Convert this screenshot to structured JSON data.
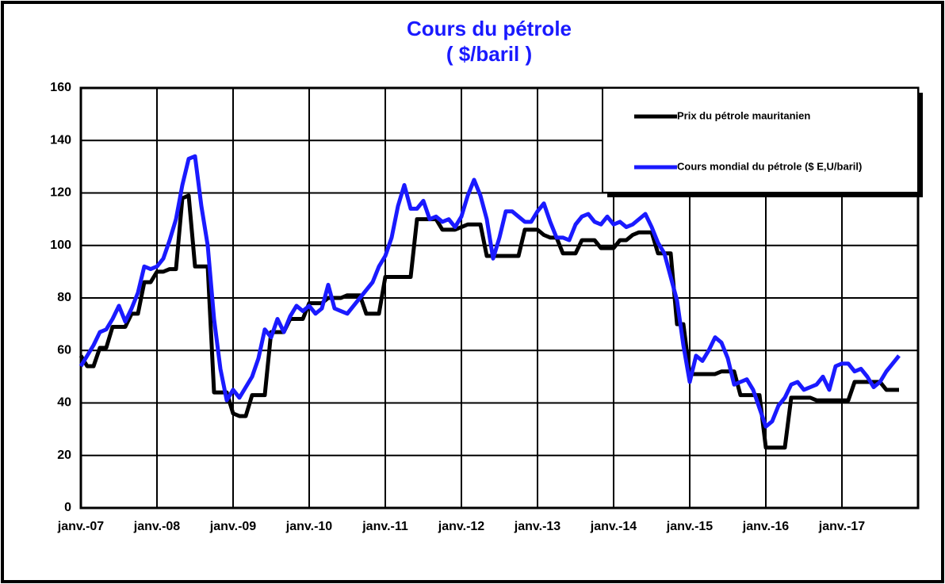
{
  "chart_data": {
    "type": "line",
    "title": "Cours du pétrole",
    "subtitle": "( $/baril )",
    "categories": [
      "janv.-07",
      null,
      null,
      null,
      null,
      null,
      null,
      null,
      null,
      null,
      null,
      null,
      "janv.-08",
      null,
      null,
      null,
      null,
      null,
      null,
      null,
      null,
      null,
      null,
      null,
      "janv.-09",
      null,
      null,
      null,
      null,
      null,
      null,
      null,
      null,
      null,
      null,
      null,
      "janv.-10",
      null,
      null,
      null,
      null,
      null,
      null,
      null,
      null,
      null,
      null,
      null,
      "janv.-11",
      null,
      null,
      null,
      null,
      null,
      null,
      null,
      null,
      null,
      null,
      null,
      "janv.-12",
      null,
      null,
      null,
      null,
      null,
      null,
      null,
      null,
      null,
      null,
      null,
      "janv.-13",
      null,
      null,
      null,
      null,
      null,
      null,
      null,
      null,
      null,
      null,
      null,
      "janv.-14",
      null,
      null,
      null,
      null,
      null,
      null,
      null,
      null,
      null,
      null,
      null,
      "janv.-15",
      null,
      null,
      null,
      null,
      null,
      null,
      null,
      null,
      null,
      null,
      null,
      "janv.-16",
      null,
      null,
      null,
      null,
      null,
      null,
      null,
      null,
      null,
      null,
      null,
      "janv.-17",
      null,
      null,
      null,
      null,
      null,
      null,
      null,
      null,
      null
    ],
    "series": [
      {
        "name": "Prix du pétrole mauritanien",
        "color": "#000000",
        "values": [
          58,
          54,
          54,
          61,
          61,
          69,
          69,
          69,
          74,
          74,
          86,
          86,
          90,
          90,
          91,
          91,
          118,
          119,
          92,
          92,
          92,
          44,
          44,
          44,
          36,
          35,
          35,
          43,
          43,
          43,
          67,
          67,
          67,
          72,
          72,
          72,
          78,
          78,
          78,
          80,
          80,
          80,
          81,
          81,
          81,
          74,
          74,
          74,
          88,
          88,
          88,
          88,
          88,
          110,
          110,
          110,
          110,
          106,
          106,
          106,
          107,
          108,
          108,
          108,
          96,
          96,
          96,
          96,
          96,
          96,
          106,
          106,
          106,
          104,
          103,
          103,
          97,
          97,
          97,
          102,
          102,
          102,
          99,
          99,
          99,
          102,
          102,
          104,
          105,
          105,
          105,
          97,
          97,
          97,
          70,
          70,
          51,
          51,
          51,
          51,
          51,
          52,
          52,
          52,
          43,
          43,
          43,
          43,
          23,
          23,
          23,
          23,
          42,
          42,
          42,
          42,
          41,
          41,
          41,
          41,
          41,
          41,
          48,
          48,
          48,
          48,
          48,
          45,
          45,
          45
        ]
      },
      {
        "name": "Cours mondial du pétrole ($ E,U/baril)",
        "color": "#1a1aff",
        "values": [
          54,
          58,
          62,
          67,
          68,
          72,
          77,
          71,
          76,
          82,
          92,
          91,
          92,
          95,
          102,
          110,
          123,
          133,
          134,
          115,
          100,
          72,
          53,
          41,
          45,
          42,
          46,
          50,
          57,
          68,
          65,
          72,
          67,
          73,
          77,
          75,
          77,
          74,
          76,
          85,
          76,
          75,
          74,
          77,
          80,
          83,
          86,
          92,
          96,
          103,
          115,
          123,
          114,
          114,
          117,
          110,
          111,
          109,
          110,
          107,
          111,
          119,
          125,
          119,
          110,
          95,
          103,
          113,
          113,
          111,
          109,
          109,
          113,
          116,
          109,
          103,
          103,
          102,
          108,
          111,
          112,
          109,
          108,
          111,
          108,
          109,
          107,
          108,
          110,
          112,
          107,
          101,
          97,
          88,
          79,
          62,
          48,
          58,
          56,
          60,
          65,
          63,
          57,
          47,
          48,
          49,
          45,
          38,
          31,
          33,
          39,
          42,
          47,
          48,
          45,
          46,
          47,
          50,
          45,
          54,
          55,
          55,
          52,
          53,
          50,
          46,
          48,
          52,
          55,
          58
        ]
      }
    ],
    "ylim": [
      0,
      160
    ],
    "yticks": [
      0,
      20,
      40,
      60,
      80,
      100,
      120,
      140,
      160
    ],
    "grid": true,
    "legend": "top-right"
  }
}
